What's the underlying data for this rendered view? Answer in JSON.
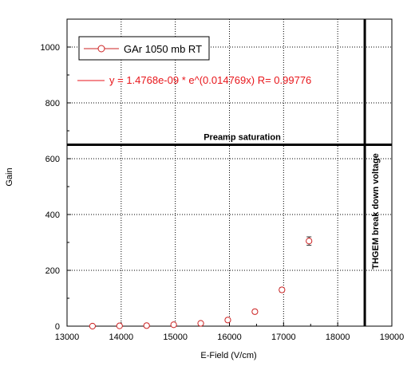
{
  "chart_data": {
    "type": "scatter",
    "xlabel": "E-Field  (V/cm)",
    "ylabel": "Gain",
    "xlim": [
      13000,
      19000
    ],
    "ylim": [
      0,
      1100
    ],
    "x_ticks": [
      13000,
      14000,
      15000,
      16000,
      17000,
      18000,
      19000
    ],
    "y_ticks": [
      0,
      200,
      400,
      600,
      800,
      1000
    ],
    "grid": "dotted",
    "legend_position": "top-left",
    "series": [
      {
        "name": "GAr 1050 mb RT",
        "marker": "open-circle",
        "color": "#cc2020",
        "x": [
          13470,
          13970,
          14470,
          14970,
          15470,
          15970,
          16470,
          16970,
          17470
        ],
        "y": [
          0,
          1,
          2,
          5,
          10,
          22,
          52,
          130,
          305
        ],
        "y_err": [
          1,
          1,
          1,
          2,
          3,
          4,
          6,
          8,
          15
        ]
      }
    ],
    "fit": {
      "label": "y = 1.4768e-09 * e^(0.014769x)   R= 0.99776",
      "a": 1.4768e-09,
      "b": 0.014769,
      "x_offset": 0,
      "color": "#e8161b"
    },
    "annotations": {
      "hline_label": "Preamp  saturation",
      "hline_y": 650,
      "vline_label": "THGEM break down voltage",
      "vline_x": 18500
    }
  }
}
